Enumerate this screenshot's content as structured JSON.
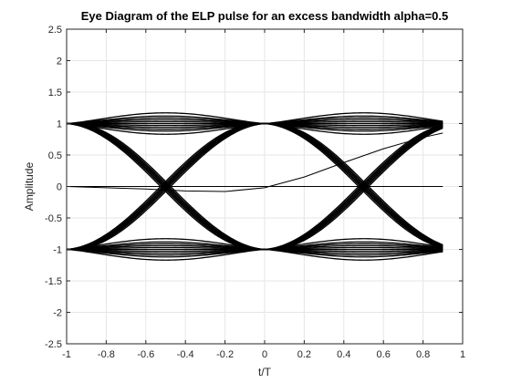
{
  "chart_data": {
    "type": "line",
    "title": "Eye Diagram of the ELP pulse for an excess bandwidth alpha=0.5",
    "xlabel": "t/T",
    "ylabel": "Amplitude",
    "xlim": [
      -1,
      1
    ],
    "ylim": [
      -2.5,
      2.5
    ],
    "xticks": [
      -1,
      -0.8,
      -0.6,
      -0.4,
      -0.2,
      0,
      0.2,
      0.4,
      0.6,
      0.8,
      1
    ],
    "xtick_labels": [
      "-1",
      "-0.8",
      "-0.6",
      "-0.4",
      "-0.2",
      "0",
      "0.2",
      "0.4",
      "0.6",
      "0.8",
      "1"
    ],
    "yticks": [
      -2.5,
      -2,
      -1.5,
      -1,
      -0.5,
      0,
      0.5,
      1,
      1.5,
      2,
      2.5
    ],
    "ytick_labels": [
      "-2.5",
      "-2",
      "-1.5",
      "-1",
      "-0.5",
      "0",
      "0.5",
      "1",
      "1.5",
      "2",
      "2.5"
    ],
    "grid": true,
    "line_color": "#000000",
    "x_end": 0.9,
    "symbol_times": [
      -1,
      0
    ],
    "symbol_levels": [
      -1,
      1
    ],
    "ripple_offsets": [
      -0.17,
      -0.12,
      -0.09,
      -0.06,
      -0.03,
      0,
      0.03,
      0.06,
      0.09,
      0.12,
      0.17
    ],
    "transition_offsets": [
      -0.08,
      -0.05,
      -0.025,
      0,
      0.025,
      0.05,
      0.08
    ],
    "series": [
      {
        "x": [
          -1,
          -0.8,
          -0.6,
          -0.4,
          -0.2,
          0,
          0.2,
          0.4,
          0.6,
          0.8,
          0.9
        ],
        "y": [
          0,
          -0.02,
          -0.04,
          -0.07,
          -0.08,
          -0.02,
          0.15,
          0.38,
          0.6,
          0.78,
          0.85
        ]
      },
      {
        "x": [
          -1,
          -0.8,
          -0.6,
          -0.4,
          -0.2,
          0,
          0.2,
          0.4,
          0.6,
          0.8,
          0.9
        ],
        "y": [
          0,
          0,
          0,
          0,
          0,
          0,
          0,
          0,
          0,
          0,
          0
        ]
      }
    ]
  }
}
